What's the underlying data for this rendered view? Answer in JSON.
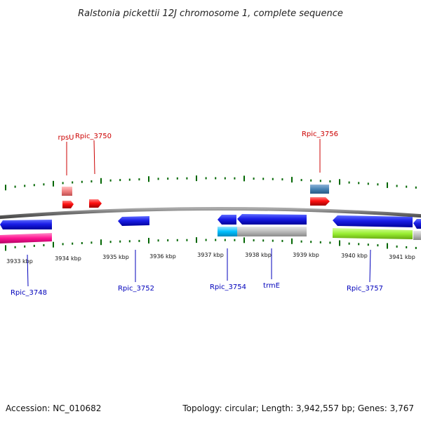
{
  "title": "Ralstonia pickettii 12J chromosome 1, complete sequence",
  "accession": "Accession: NC_010682",
  "topology": "Topology: circular; Length: 3,942,557 bp; Genes: 3,767",
  "kbp_ticks": [
    "3933 kbp",
    "3934 kbp",
    "3935 kbp",
    "3936 kbp",
    "3937 kbp",
    "3938 kbp",
    "3939 kbp",
    "3940 kbp",
    "3941 kbp"
  ],
  "forward_genes": [
    "rpsU",
    "Rpic_3750",
    "Rpic_3756"
  ],
  "reverse_genes": [
    "Rpic_3748",
    "Rpic_3752",
    "Rpic_3754",
    "trmE",
    "Rpic_3757"
  ],
  "colors": {
    "forward_label": "#cc0000",
    "reverse_label": "#0000bb",
    "forward_feature": "#ff0000",
    "reverse_feature": "#0000ee",
    "rrna_pink": "#f08080",
    "steel_blue": "#4682b4",
    "magenta": "#ff1493",
    "cyan": "#00bfff",
    "gray_feature": "#bbbbbb",
    "lime": "#99ee33",
    "backbone": "#777777",
    "tick": "#006600"
  }
}
